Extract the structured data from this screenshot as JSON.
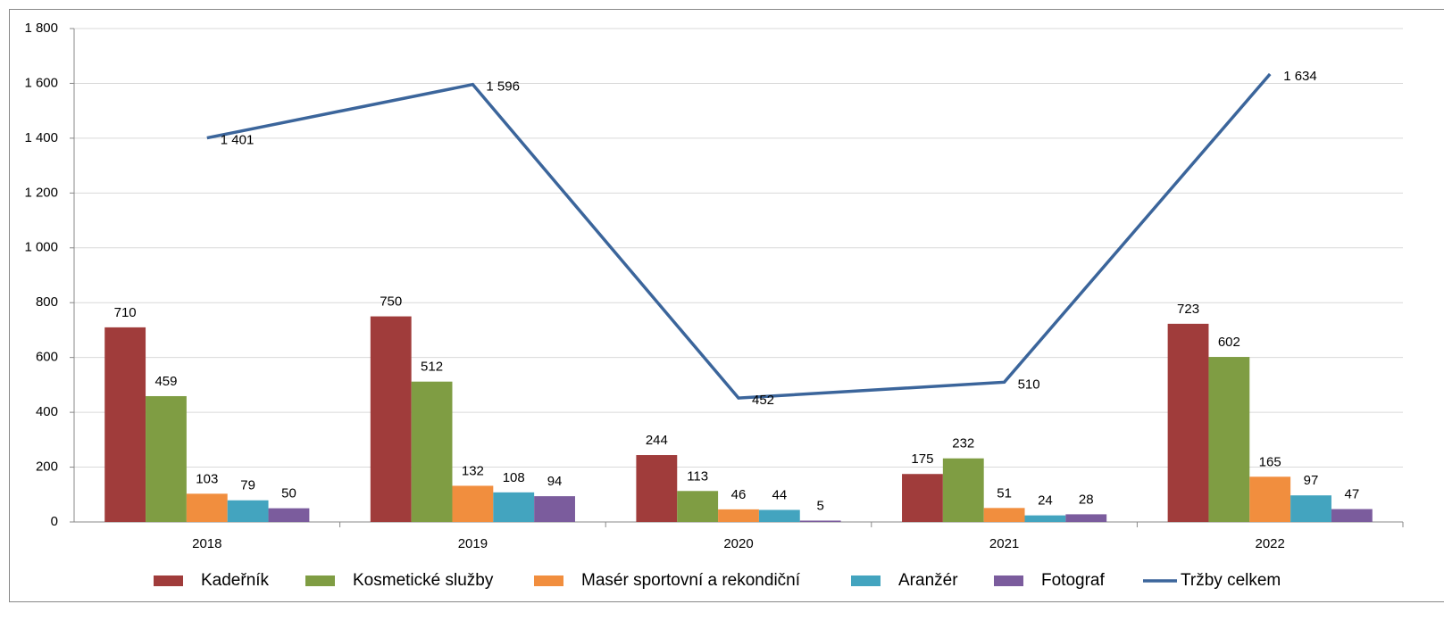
{
  "chart_data": {
    "type": "bar",
    "categories": [
      "2018",
      "2019",
      "2020",
      "2021",
      "2022"
    ],
    "series": [
      {
        "name": "Kadeřník",
        "color": "#a03c3b",
        "values": [
          710,
          750,
          244,
          175,
          723
        ]
      },
      {
        "name": "Kosmetické služby",
        "color": "#7f9d43",
        "values": [
          459,
          512,
          113,
          232,
          602
        ]
      },
      {
        "name": "Masér sportovní a rekondiční",
        "color": "#f18e3e",
        "values": [
          103,
          132,
          46,
          51,
          165
        ]
      },
      {
        "name": "Aranžér",
        "color": "#43a4bf",
        "values": [
          79,
          108,
          44,
          24,
          97
        ]
      },
      {
        "name": "Fotograf",
        "color": "#7b5c9d",
        "values": [
          50,
          94,
          5,
          28,
          47
        ]
      },
      {
        "name": "Tržby celkem",
        "type": "line",
        "color": "#3b659b",
        "values": [
          1401,
          1596,
          452,
          510,
          1634
        ],
        "value_labels": [
          "1 401",
          "1 596",
          "452",
          "510",
          "1 634"
        ]
      }
    ],
    "ylim": [
      0,
      1800
    ],
    "yticks": [
      0,
      200,
      400,
      600,
      800,
      {
        "value": 1000,
        "label": "1 000"
      },
      {
        "value": 1200,
        "label": "1 200"
      },
      {
        "value": 1400,
        "label": "1 400"
      },
      {
        "value": 1600,
        "label": "1 600"
      },
      {
        "value": 1800,
        "label": "1 800"
      }
    ],
    "grid": true,
    "legend": "bottom"
  }
}
